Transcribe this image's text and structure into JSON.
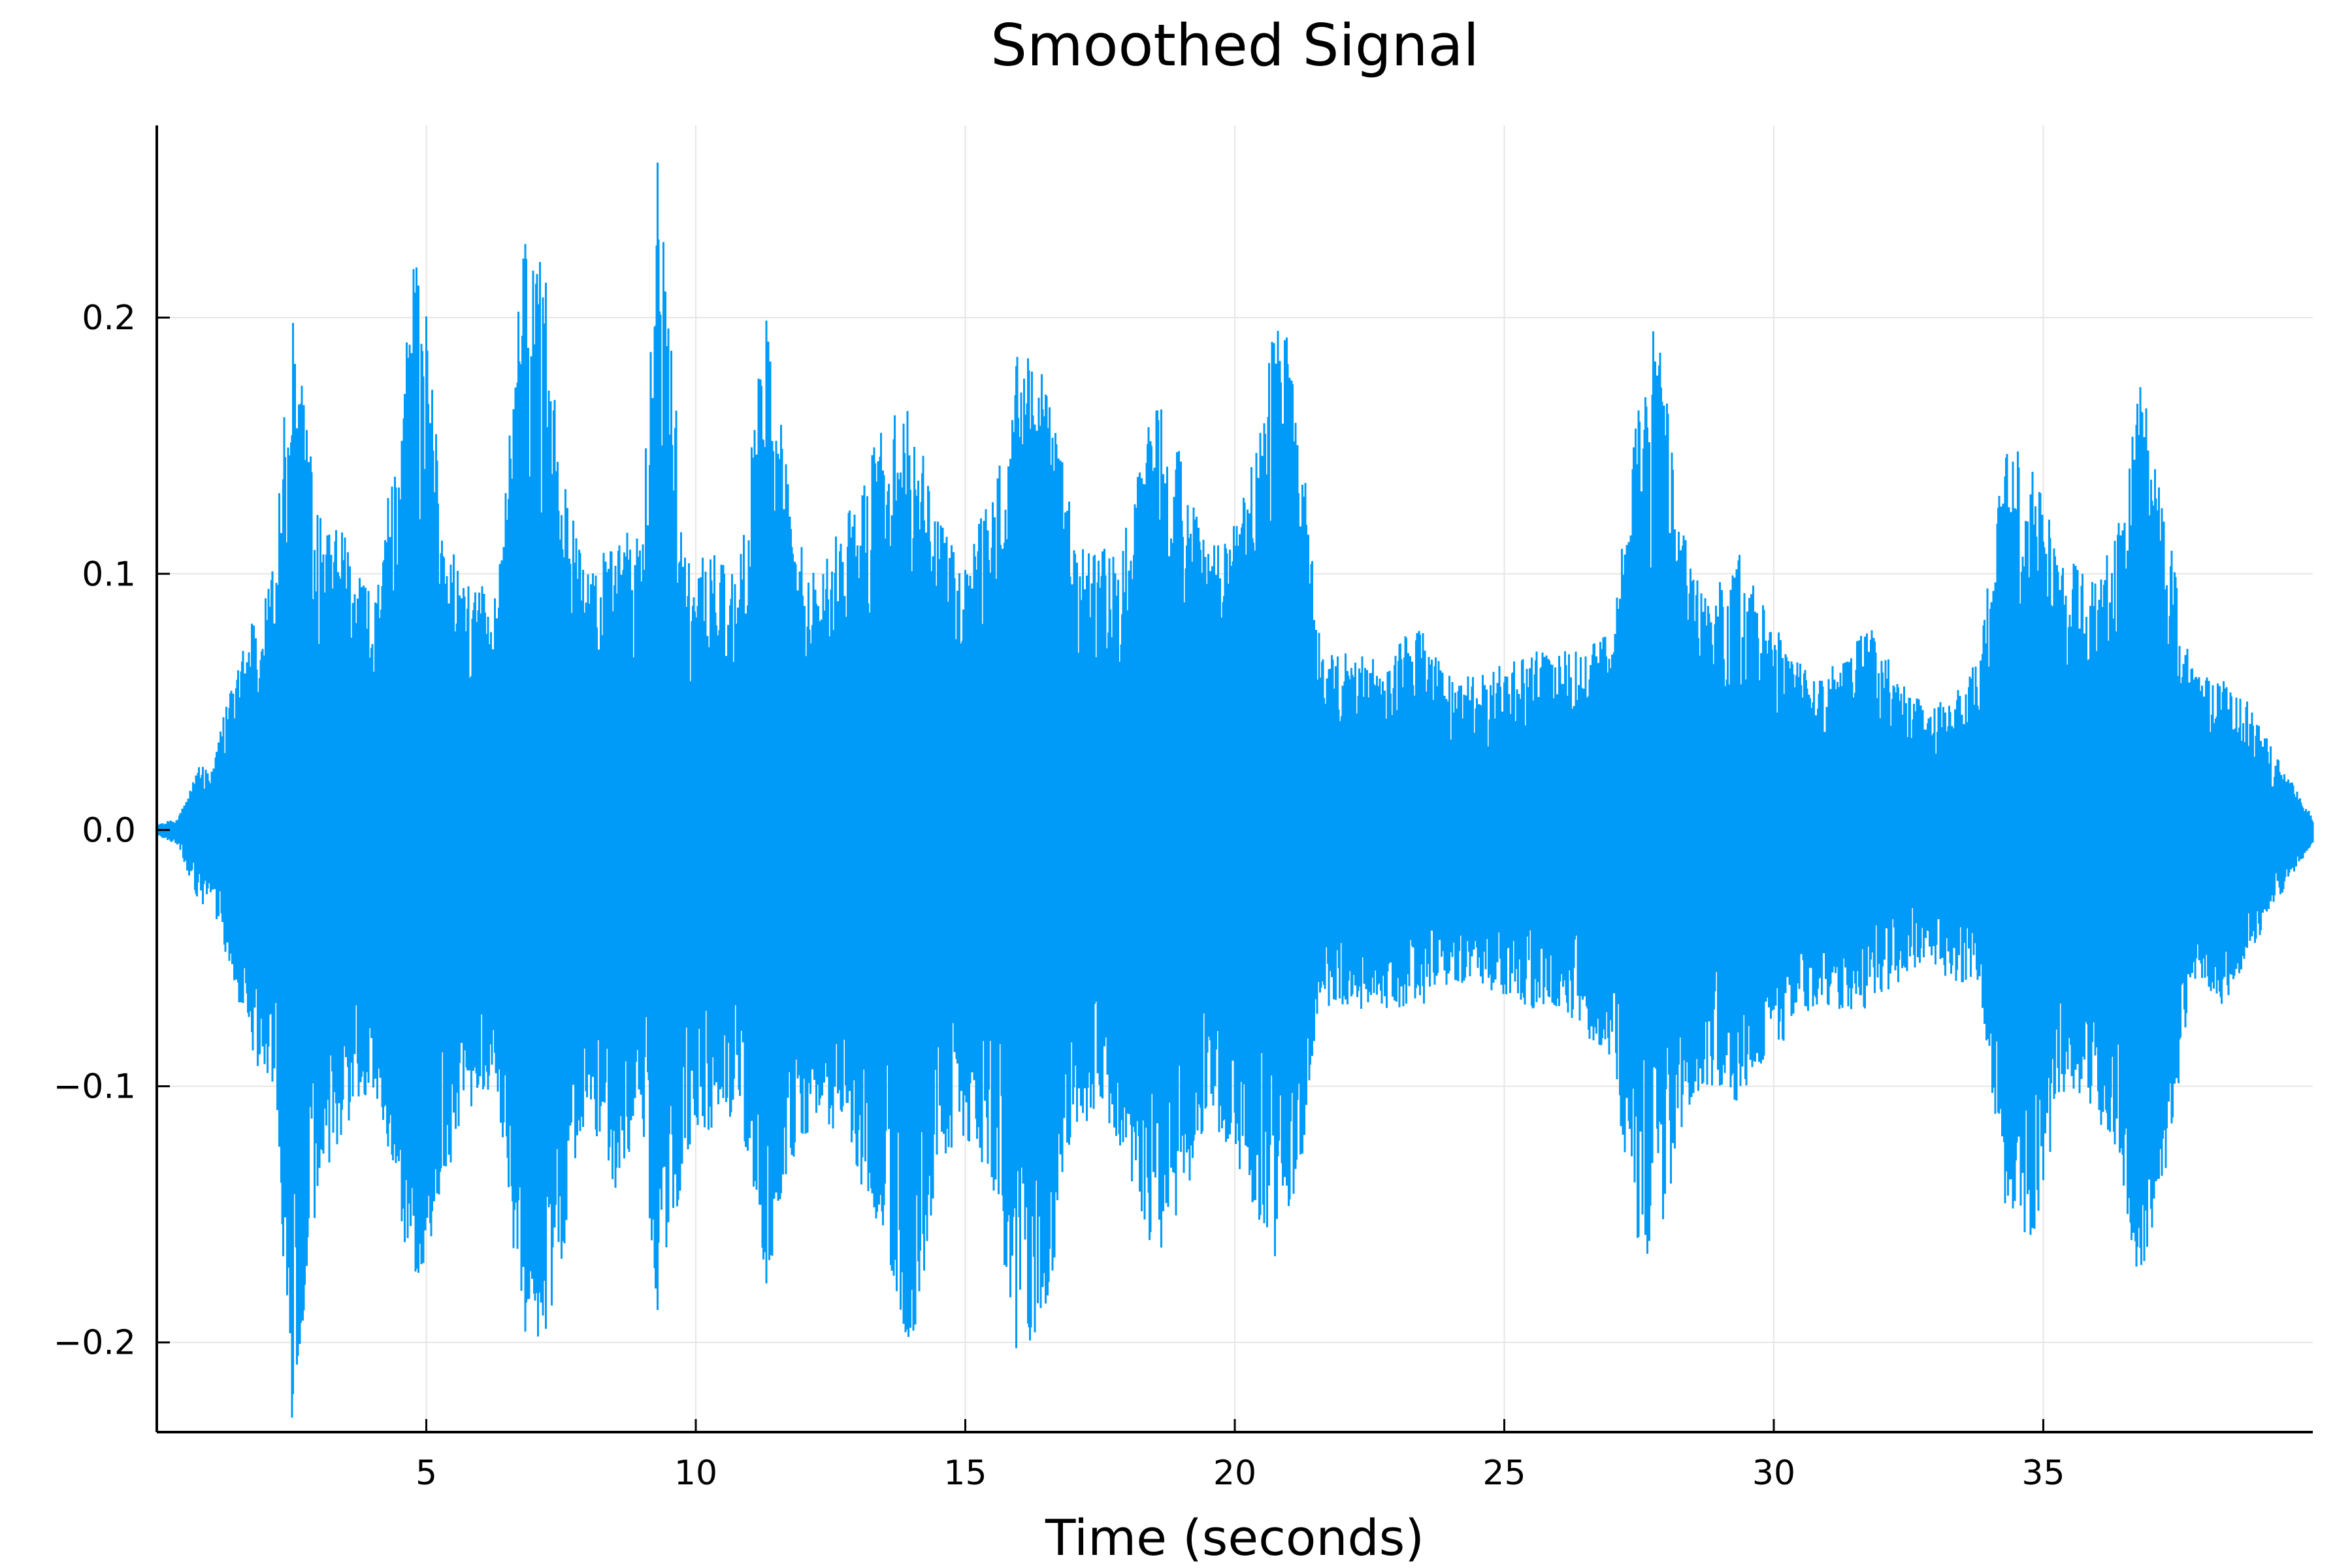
{
  "chart_data": {
    "type": "line",
    "title": "Smoothed Signal",
    "xlabel": "Time (seconds)",
    "ylabel": "",
    "xlim": [
      0,
      40
    ],
    "ylim": [
      -0.235,
      0.275
    ],
    "x_ticks": [
      5,
      10,
      15,
      20,
      25,
      30,
      35
    ],
    "x_tick_labels": [
      "5",
      "10",
      "15",
      "20",
      "25",
      "30",
      "35"
    ],
    "y_ticks": [
      -0.2,
      -0.1,
      0.0,
      0.1,
      0.2
    ],
    "y_tick_labels": [
      "−0.2",
      "−0.1",
      "0.0",
      "0.1",
      "0.2"
    ],
    "grid": true,
    "legend": "none",
    "colors": {
      "series": "#009af9",
      "grid": "#e6e6e6",
      "axis": "#000000"
    },
    "series": [
      {
        "envelope": [
          [
            0.0,
            0.002,
            -0.002
          ],
          [
            0.4,
            0.005,
            -0.006
          ],
          [
            0.8,
            0.026,
            -0.03
          ],
          [
            1.0,
            0.022,
            -0.028
          ],
          [
            1.3,
            0.05,
            -0.05
          ],
          [
            1.8,
            0.085,
            -0.09
          ],
          [
            2.2,
            0.11,
            -0.11
          ],
          [
            2.5,
            0.22,
            -0.235
          ],
          [
            3.0,
            0.125,
            -0.14
          ],
          [
            3.5,
            0.115,
            -0.12
          ],
          [
            4.0,
            0.09,
            -0.1
          ],
          [
            4.5,
            0.16,
            -0.15
          ],
          [
            4.8,
            0.248,
            -0.185
          ],
          [
            5.3,
            0.13,
            -0.14
          ],
          [
            5.8,
            0.1,
            -0.11
          ],
          [
            6.3,
            0.09,
            -0.1
          ],
          [
            6.8,
            0.23,
            -0.2
          ],
          [
            7.2,
            0.22,
            -0.21
          ],
          [
            7.5,
            0.14,
            -0.17
          ],
          [
            8.0,
            0.1,
            -0.11
          ],
          [
            8.5,
            0.12,
            -0.14
          ],
          [
            9.0,
            0.115,
            -0.12
          ],
          [
            9.3,
            0.275,
            -0.19
          ],
          [
            9.8,
            0.11,
            -0.13
          ],
          [
            10.3,
            0.11,
            -0.12
          ],
          [
            10.8,
            0.1,
            -0.11
          ],
          [
            11.3,
            0.212,
            -0.18
          ],
          [
            11.8,
            0.12,
            -0.13
          ],
          [
            12.3,
            0.1,
            -0.11
          ],
          [
            12.9,
            0.13,
            -0.13
          ],
          [
            13.5,
            0.16,
            -0.16
          ],
          [
            14.0,
            0.17,
            -0.21
          ],
          [
            14.5,
            0.12,
            -0.13
          ],
          [
            15.0,
            0.11,
            -0.12
          ],
          [
            15.5,
            0.13,
            -0.14
          ],
          [
            16.0,
            0.19,
            -0.21
          ],
          [
            16.5,
            0.18,
            -0.19
          ],
          [
            17.0,
            0.12,
            -0.12
          ],
          [
            17.5,
            0.11,
            -0.11
          ],
          [
            18.0,
            0.12,
            -0.13
          ],
          [
            18.5,
            0.17,
            -0.17
          ],
          [
            19.0,
            0.15,
            -0.15
          ],
          [
            19.5,
            0.11,
            -0.11
          ],
          [
            20.0,
            0.12,
            -0.13
          ],
          [
            20.5,
            0.16,
            -0.16
          ],
          [
            20.8,
            0.215,
            -0.17
          ],
          [
            21.2,
            0.16,
            -0.14
          ],
          [
            21.6,
            0.07,
            -0.07
          ],
          [
            22.2,
            0.07,
            -0.07
          ],
          [
            22.8,
            0.07,
            -0.07
          ],
          [
            23.4,
            0.08,
            -0.07
          ],
          [
            24.0,
            0.06,
            -0.06
          ],
          [
            24.5,
            0.06,
            -0.06
          ],
          [
            25.0,
            0.065,
            -0.065
          ],
          [
            25.5,
            0.07,
            -0.07
          ],
          [
            26.0,
            0.07,
            -0.07
          ],
          [
            26.5,
            0.07,
            -0.08
          ],
          [
            27.0,
            0.08,
            -0.09
          ],
          [
            27.5,
            0.17,
            -0.17
          ],
          [
            27.8,
            0.205,
            -0.17
          ],
          [
            28.3,
            0.12,
            -0.12
          ],
          [
            28.8,
            0.09,
            -0.1
          ],
          [
            29.3,
            0.11,
            -0.11
          ],
          [
            29.8,
            0.09,
            -0.09
          ],
          [
            30.3,
            0.07,
            -0.08
          ],
          [
            30.8,
            0.06,
            -0.07
          ],
          [
            31.3,
            0.07,
            -0.07
          ],
          [
            31.8,
            0.08,
            -0.07
          ],
          [
            32.3,
            0.06,
            -0.06
          ],
          [
            32.8,
            0.05,
            -0.05
          ],
          [
            33.3,
            0.05,
            -0.06
          ],
          [
            33.8,
            0.07,
            -0.06
          ],
          [
            34.3,
            0.15,
            -0.15
          ],
          [
            34.8,
            0.15,
            -0.16
          ],
          [
            35.3,
            0.11,
            -0.11
          ],
          [
            35.8,
            0.1,
            -0.11
          ],
          [
            36.3,
            0.11,
            -0.12
          ],
          [
            36.8,
            0.18,
            -0.18
          ],
          [
            37.3,
            0.12,
            -0.13
          ],
          [
            37.8,
            0.06,
            -0.06
          ],
          [
            38.3,
            0.06,
            -0.07
          ],
          [
            38.8,
            0.05,
            -0.05
          ],
          [
            39.3,
            0.03,
            -0.03
          ],
          [
            40.0,
            0.005,
            -0.005
          ]
        ]
      }
    ]
  }
}
